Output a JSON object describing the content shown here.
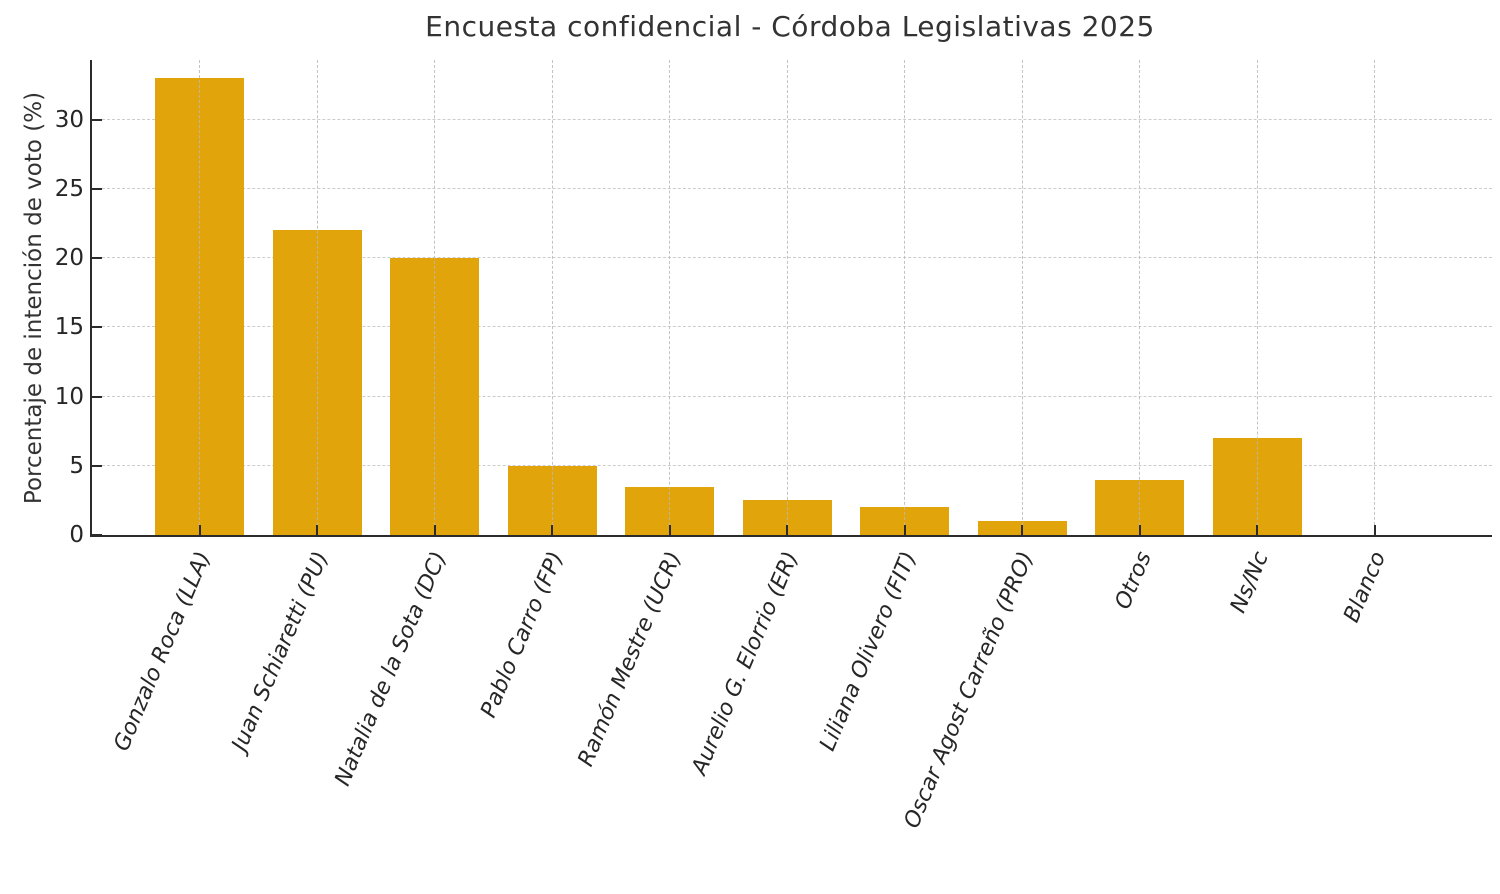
{
  "chart_data": {
    "type": "bar",
    "title": "Encuesta confidencial - Córdoba Legislativas 2025",
    "ylabel": "Porcentaje de intención de voto (%)",
    "xlabel": "",
    "categories": [
      "Gonzalo Roca (LLA)",
      "Juan Schiaretti (PU)",
      "Natalia de la Sota (DC)",
      "Pablo Carro (FP)",
      "Ramón Mestre (UCR)",
      "Aurelio G. Elorrio (ER)",
      "Liliana Olivero (FIT)",
      "Oscar Agost Carreño (PRO)",
      "Otros",
      "Ns/Nc",
      "Blanco"
    ],
    "values": [
      33,
      22,
      20,
      5,
      3.5,
      2.5,
      2,
      1,
      4,
      7,
      0
    ],
    "ylim": [
      0,
      34.3
    ],
    "yticks": [
      0,
      5,
      10,
      15,
      20,
      25,
      30
    ],
    "bar_color": "#e2a40b",
    "grid": {
      "style": "dashed",
      "axes": "both",
      "color": "#cccccc"
    },
    "legend": "none",
    "x_tick_label_style": "italic, rotated ~67deg",
    "spines": "left and bottom only, ticks point inward"
  }
}
